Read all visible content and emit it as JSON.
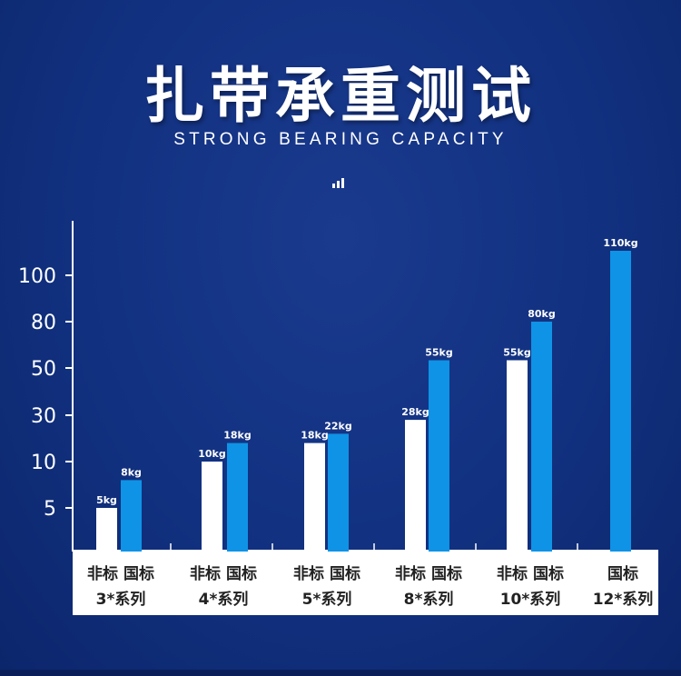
{
  "header": {
    "title": "扎带承重测试",
    "subtitle": "STRONG BEARING CAPACITY"
  },
  "colors": {
    "background": "#11307f",
    "non_standard_bar": "#ffffff",
    "national_standard_bar": "#0f93e6",
    "label_panel": "#ffffff"
  },
  "chart_data": {
    "type": "bar",
    "title": "扎带承重测试",
    "subtitle": "STRONG BEARING CAPACITY",
    "y_axis_scale": "non-uniform ordinal",
    "yticks": [
      "5",
      "10",
      "30",
      "50",
      "80",
      "100"
    ],
    "categories": [
      {
        "line1": "非标 国标",
        "line2": "3*系列"
      },
      {
        "line1": "非标 国标",
        "line2": "4*系列"
      },
      {
        "line1": "非标 国标",
        "line2": "5*系列"
      },
      {
        "line1": "非标 国标",
        "line2": "8*系列"
      },
      {
        "line1": "非标 国标",
        "line2": "10*系列"
      },
      {
        "line1": "国标",
        "line2": "12*系列"
      }
    ],
    "series": [
      {
        "name": "非标",
        "color": "#ffffff",
        "values": [
          5,
          10,
          18,
          28,
          55,
          null
        ],
        "labels": [
          "5kg",
          "10kg",
          "18kg",
          "28kg",
          "55kg",
          ""
        ]
      },
      {
        "name": "国标",
        "color": "#0f93e6",
        "values": [
          8,
          18,
          22,
          55,
          80,
          110
        ],
        "labels": [
          "8kg",
          "18kg",
          "22kg",
          "55kg",
          "80kg",
          "110kg"
        ]
      }
    ],
    "unit": "kg",
    "grid": false,
    "legend": "none"
  }
}
